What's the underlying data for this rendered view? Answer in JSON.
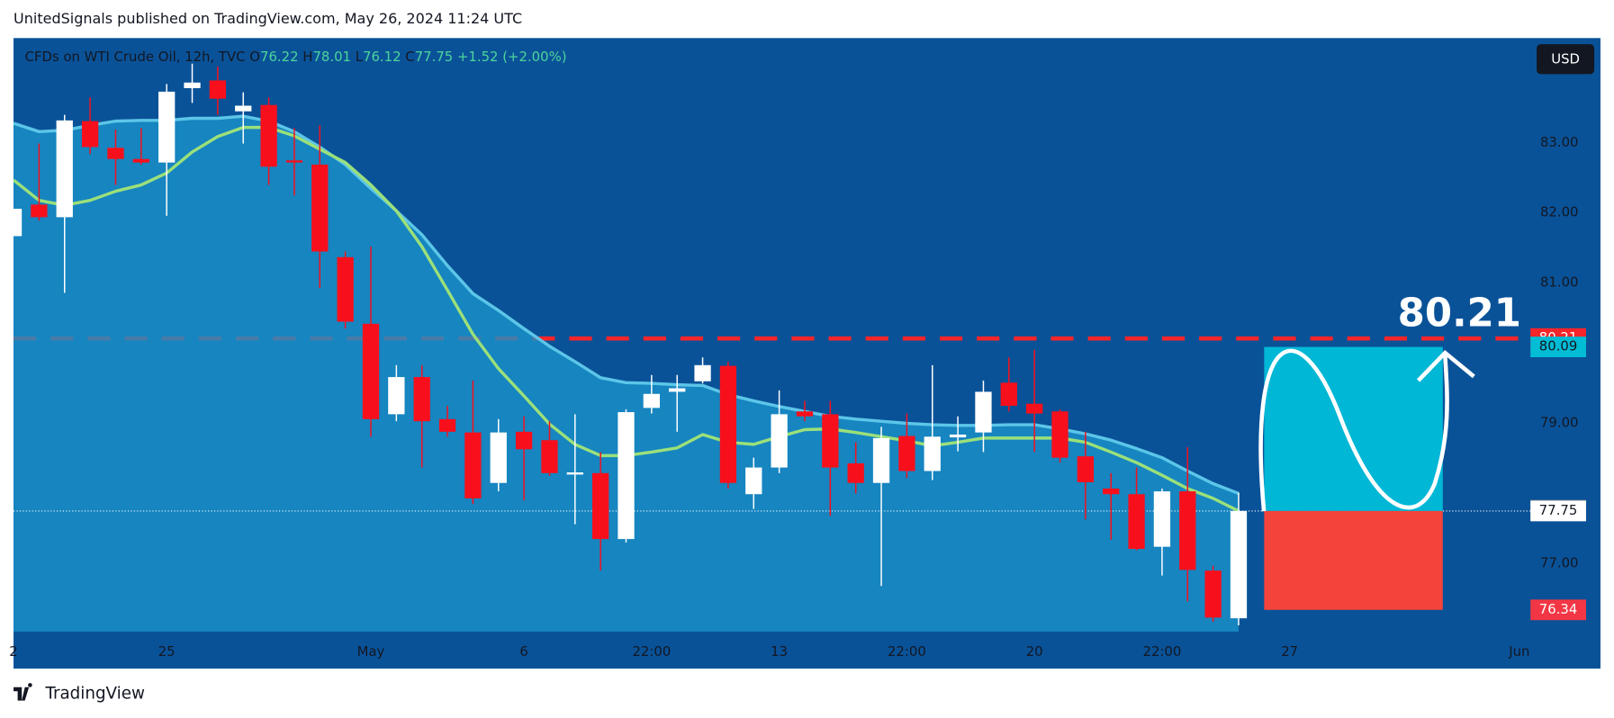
{
  "header": "UnitedSignals published on TradingView.com, May 26, 2024 11:24 UTC",
  "footer": "TradingView",
  "chart_data": {
    "type": "candlestick",
    "legend": {
      "symbol": "CFDs on WTI Crude Oil, 12h, TVC",
      "letters": [
        "O",
        "H",
        "L",
        "C"
      ],
      "open": 76.22,
      "high": 78.01,
      "low": 76.12,
      "close": 77.75,
      "change": "+1.52",
      "change_pct": "(+2.00%)"
    },
    "currency": "USD",
    "categories": [
      "2",
      null,
      null,
      null,
      null,
      null,
      "25",
      null,
      null,
      null,
      null,
      null,
      null,
      null,
      "May",
      null,
      null,
      null,
      null,
      null,
      "6",
      null,
      null,
      null,
      null,
      "22:00",
      null,
      null,
      null,
      null,
      "13",
      null,
      null,
      null,
      null,
      "22:00",
      null,
      null,
      null,
      null,
      "20",
      null,
      null,
      null,
      null,
      "22:00",
      null,
      null,
      null
    ],
    "forecast_categories": [
      null,
      "27",
      null,
      null,
      null,
      null,
      null,
      null,
      null,
      null,
      "Jun"
    ],
    "open": [
      81.67,
      82.12,
      81.94,
      83.31,
      82.93,
      82.77,
      82.72,
      83.78,
      83.89,
      83.45,
      83.54,
      82.75,
      82.69,
      81.37,
      80.42,
      79.13,
      79.66,
      79.06,
      78.87,
      78.15,
      78.88,
      78.76,
      78.27,
      78.29,
      77.35,
      79.22,
      79.45,
      79.6,
      79.82,
      77.99,
      78.37,
      79.17,
      79.13,
      78.43,
      78.15,
      78.82,
      78.32,
      78.8,
      78.87,
      79.58,
      79.28,
      79.17,
      78.53,
      78.07,
      77.99,
      77.24,
      78.03,
      76.9,
      76.22
    ],
    "high": [
      82.06,
      82.99,
      83.4,
      83.65,
      83.19,
      83.21,
      83.84,
      84.13,
      84.09,
      83.72,
      83.65,
      83.21,
      83.25,
      81.45,
      81.52,
      79.83,
      79.83,
      79.25,
      79.61,
      79.06,
      79.1,
      79.03,
      79.13,
      78.59,
      79.2,
      79.69,
      79.69,
      79.94,
      79.88,
      78.51,
      79.47,
      79.32,
      79.32,
      78.73,
      78.95,
      79.14,
      79.83,
      79.1,
      79.61,
      79.94,
      80.05,
      79.2,
      78.88,
      78.29,
      78.37,
      78.07,
      78.66,
      76.97,
      78.01
    ],
    "low": [
      81.67,
      81.89,
      80.86,
      82.84,
      82.4,
      82.69,
      81.96,
      83.57,
      83.4,
      82.99,
      82.4,
      82.25,
      80.93,
      80.35,
      78.81,
      79.03,
      78.37,
      78.81,
      77.85,
      78.03,
      77.9,
      78.25,
      77.56,
      76.9,
      77.3,
      79.14,
      78.88,
      79.57,
      78.07,
      77.78,
      78.29,
      79.03,
      77.68,
      78.0,
      76.68,
      78.22,
      78.19,
      78.6,
      78.59,
      79.17,
      78.59,
      78.44,
      77.63,
      77.34,
      77.19,
      76.83,
      76.46,
      76.17,
      76.12
    ],
    "close": [
      82.06,
      81.94,
      83.32,
      82.94,
      82.77,
      82.72,
      83.73,
      83.86,
      83.63,
      83.53,
      82.66,
      82.72,
      81.45,
      80.45,
      79.06,
      79.66,
      79.03,
      78.88,
      77.93,
      78.87,
      78.63,
      78.29,
      78.3,
      77.35,
      79.16,
      79.42,
      79.5,
      79.83,
      78.15,
      78.37,
      79.13,
      79.1,
      78.37,
      78.15,
      78.79,
      78.32,
      78.81,
      78.84,
      79.45,
      79.25,
      79.14,
      78.51,
      78.16,
      77.99,
      77.21,
      78.03,
      76.91,
      76.23,
      77.75
    ],
    "up_color": "#ffffff",
    "down_color": "#f7101c",
    "lines": [
      {
        "color": "#5cc6e8",
        "area_color": "#1a93cc",
        "values": [
          83.28,
          83.16,
          83.18,
          83.25,
          83.31,
          83.32,
          83.32,
          83.35,
          83.35,
          83.38,
          83.31,
          83.16,
          82.94,
          82.69,
          82.35,
          82.03,
          81.69,
          81.25,
          80.85,
          80.61,
          80.35,
          80.1,
          79.88,
          79.65,
          79.58,
          79.57,
          79.55,
          79.54,
          79.41,
          79.32,
          79.24,
          79.17,
          79.1,
          79.06,
          79.03,
          79.0,
          78.98,
          78.97,
          78.97,
          78.98,
          78.98,
          78.92,
          78.85,
          78.76,
          78.64,
          78.51,
          78.32,
          78.14,
          78.0
        ]
      },
      {
        "color": "#9be07a",
        "values": [
          82.47,
          82.18,
          82.11,
          82.18,
          82.31,
          82.4,
          82.57,
          82.87,
          83.09,
          83.22,
          83.22,
          83.1,
          82.91,
          82.72,
          82.4,
          82.03,
          81.52,
          80.9,
          80.27,
          79.78,
          79.39,
          78.99,
          78.7,
          78.54,
          78.54,
          78.59,
          78.65,
          78.84,
          78.73,
          78.7,
          78.81,
          78.91,
          78.92,
          78.87,
          78.81,
          78.75,
          78.68,
          78.73,
          78.79,
          78.79,
          78.79,
          78.79,
          78.73,
          78.59,
          78.44,
          78.26,
          78.07,
          77.93,
          77.75
        ]
      }
    ],
    "ylim": [
      76.03,
      84.48
    ],
    "yticks": [
      {
        "value": 77,
        "label": "77.00"
      },
      {
        "value": 79,
        "label": "79.00"
      },
      {
        "value": 81,
        "label": "81.00"
      },
      {
        "value": 82,
        "label": "82.00"
      },
      {
        "value": 83,
        "label": "83.00"
      }
    ],
    "grid": false,
    "hline": {
      "value": 80.21,
      "color": "#f7252a"
    },
    "position": {
      "target": 80.09,
      "entry": 77.75,
      "stop": 76.34,
      "profit_color": "#00b7d6",
      "loss_color": "#f4433a"
    },
    "price_labels": [
      {
        "value": 80.21,
        "color": "#f7252a",
        "text_color": "#ffffff"
      },
      {
        "value": 80.09,
        "color": "#00bcd4",
        "text_color": "#131722"
      },
      {
        "value": 77.76,
        "color": "#8a8f98",
        "text_color": "#ffffff"
      },
      {
        "value": 77.75,
        "color": "#ffffff",
        "text_color": "#131722"
      },
      {
        "value": 76.34,
        "color": "#f23645",
        "text_color": "#ffffff"
      }
    ]
  }
}
